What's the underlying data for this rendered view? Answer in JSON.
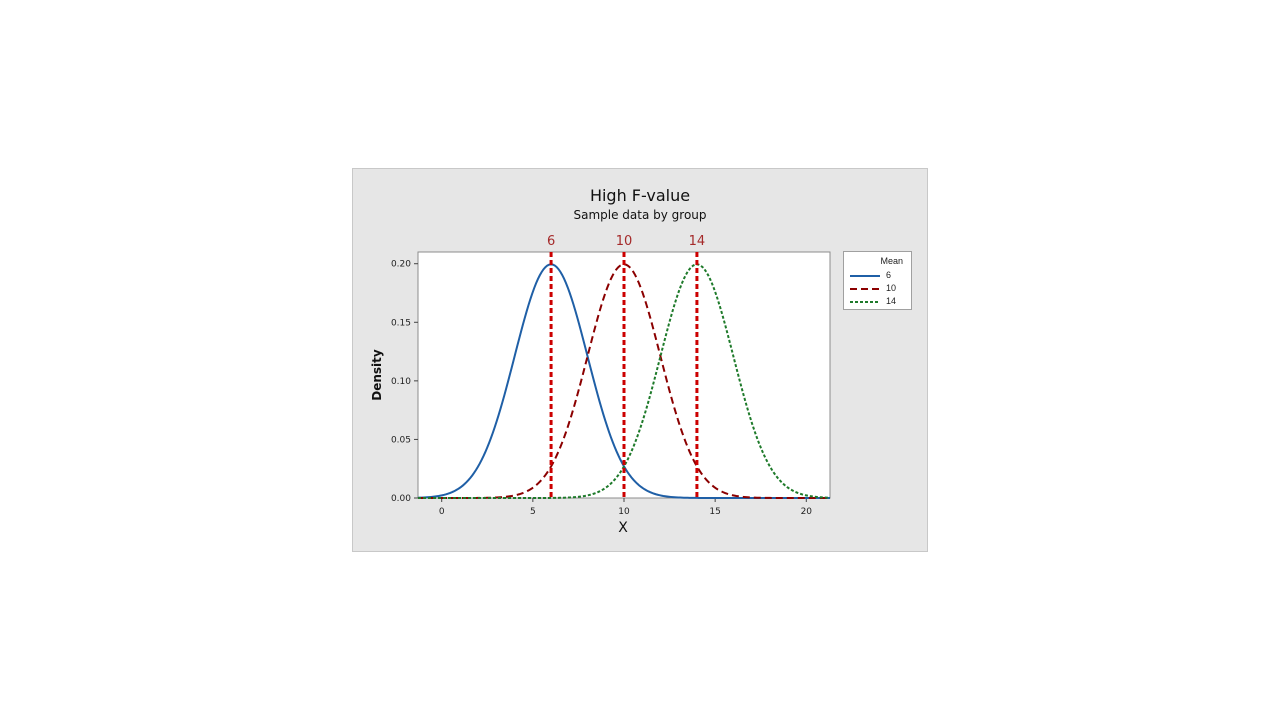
{
  "chart_data": {
    "type": "line",
    "title": "High F-value",
    "subtitle": "Sample data by group",
    "xlabel": "X",
    "ylabel": "Density",
    "xlim": [
      -1.3,
      21.3
    ],
    "ylim": [
      0,
      0.21
    ],
    "x_ticks": [
      0,
      5,
      10,
      15,
      20
    ],
    "x_tick_labels": [
      "0",
      "5",
      "10",
      "15",
      "20"
    ],
    "y_ticks": [
      0,
      0.05,
      0.1,
      0.15,
      0.2
    ],
    "y_tick_labels": [
      "0.00",
      "0.05",
      "0.10",
      "0.15",
      "0.20"
    ],
    "grid": false,
    "legend": {
      "title": "Mean",
      "placement": "right"
    },
    "series": [
      {
        "name": "6",
        "mean": 6,
        "sd": 2,
        "color": "#1f5fa6",
        "style": "solid"
      },
      {
        "name": "10",
        "mean": 10,
        "sd": 2,
        "color": "#8b0000",
        "style": "dashed"
      },
      {
        "name": "14",
        "mean": 14,
        "sd": 2,
        "color": "#1e7a2a",
        "style": "dotted"
      }
    ],
    "reference_lines": [
      {
        "x": 6,
        "label": "6"
      },
      {
        "x": 10,
        "label": "10"
      },
      {
        "x": 14,
        "label": "14"
      }
    ],
    "reference_color": "#cc0000",
    "reference_label_color": "#a52a2a"
  }
}
